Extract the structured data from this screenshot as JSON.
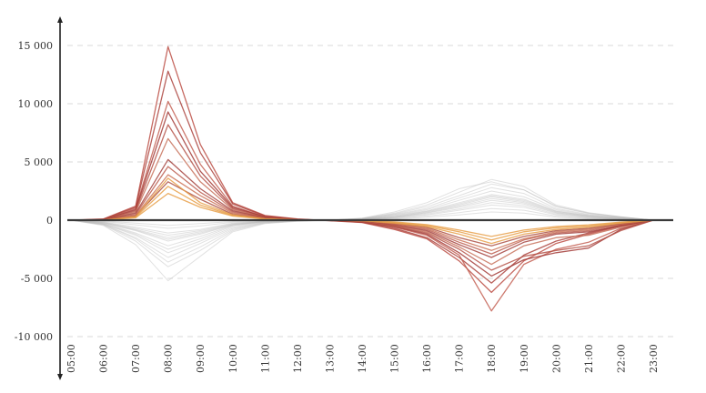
{
  "chart_data": {
    "type": "line",
    "title": "",
    "xlabel": "",
    "ylabel": "",
    "ylim": [
      -10000,
      15000
    ],
    "grid": true,
    "x": [
      "05:00",
      "06:00",
      "07:00",
      "08:00",
      "09:00",
      "10:00",
      "11:00",
      "12:00",
      "13:00",
      "14:00",
      "15:00",
      "16:00",
      "17:00",
      "18:00",
      "19:00",
      "20:00",
      "21:00",
      "22:00",
      "23:00"
    ],
    "y_ticks": [
      -10000,
      -5000,
      0,
      5000,
      10000,
      15000
    ],
    "y_tick_labels": [
      "-10 000",
      "-5 000",
      "0",
      "5 000",
      "10 000",
      "15 000"
    ],
    "x_tick_labels": [
      "05:00",
      "06:00",
      "07:00",
      "08:00",
      "09:00",
      "10:00",
      "11:00",
      "12:00",
      "13:00",
      "14:00",
      "15:00",
      "16:00",
      "17:00",
      "18:00",
      "19:00",
      "20:00",
      "21:00",
      "22:00",
      "23:00"
    ],
    "colors": {
      "gray": "#bdbdbd",
      "highlight_dark": "#a0332f",
      "highlight_mid": "#c0584a",
      "highlight_light": "#e8a04a",
      "axis": "#222222"
    },
    "series_groups": [
      {
        "role": "background",
        "color": "#bdbdbd",
        "series": [
          {
            "values": [
              0,
              -300,
              -1200,
              -2500,
              -1600,
              -500,
              -150,
              -50,
              0,
              100,
              400,
              800,
              1500,
              2200,
              1800,
              800,
              400,
              200,
              0
            ]
          },
          {
            "values": [
              0,
              -250,
              -900,
              -1800,
              -1200,
              -400,
              -120,
              -40,
              0,
              80,
              300,
              700,
              1300,
              2000,
              1600,
              700,
              350,
              150,
              0
            ]
          },
          {
            "values": [
              0,
              -350,
              -1500,
              -3200,
              -2000,
              -700,
              -200,
              -60,
              0,
              120,
              500,
              1000,
              1900,
              2800,
              2300,
              1000,
              500,
              250,
              0
            ]
          },
          {
            "values": [
              0,
              -200,
              -800,
              -1500,
              -1000,
              -350,
              -100,
              -30,
              0,
              60,
              250,
              600,
              1100,
              1700,
              1400,
              600,
              300,
              120,
              0
            ]
          },
          {
            "values": [
              0,
              -400,
              -1800,
              -4000,
              -2600,
              -900,
              -250,
              -80,
              0,
              150,
              600,
              1300,
              2400,
              3500,
              2900,
              1300,
              650,
              300,
              0
            ]
          },
          {
            "values": [
              0,
              -150,
              -600,
              -1100,
              -800,
              -250,
              -80,
              -20,
              0,
              50,
              200,
              450,
              850,
              1300,
              1100,
              450,
              220,
              100,
              0
            ]
          },
          {
            "values": [
              0,
              -450,
              -2100,
              -5200,
              -3100,
              -1000,
              -300,
              -90,
              0,
              170,
              700,
              1500,
              2700,
              3300,
              2600,
              1200,
              600,
              280,
              0
            ]
          },
          {
            "values": [
              0,
              -100,
              -400,
              -700,
              -500,
              -180,
              -60,
              -15,
              0,
              40,
              150,
              350,
              650,
              1000,
              850,
              350,
              170,
              80,
              0
            ]
          },
          {
            "values": [
              0,
              -280,
              -1100,
              -2200,
              -1400,
              -450,
              -140,
              -45,
              0,
              90,
              350,
              750,
              1400,
              2100,
              1700,
              750,
              380,
              180,
              0
            ]
          },
          {
            "values": [
              0,
              -320,
              -1300,
              -2800,
              -1800,
              -600,
              -180,
              -55,
              0,
              110,
              450,
              900,
              1700,
              2500,
              2000,
              900,
              450,
              220,
              0
            ]
          },
          {
            "values": [
              0,
              -180,
              -700,
              -1300,
              -900,
              -300,
              -90,
              -25,
              0,
              55,
              220,
              520,
              950,
              1500,
              1250,
              520,
              260,
              110,
              0
            ]
          },
          {
            "values": [
              0,
              -380,
              -1600,
              -3600,
              -2300,
              -800,
              -230,
              -70,
              0,
              140,
              550,
              1150,
              2100,
              3100,
              2600,
              1150,
              580,
              270,
              0
            ]
          },
          {
            "values": [
              0,
              -60,
              -250,
              -450,
              -300,
              -120,
              -40,
              -10,
              0,
              30,
              100,
              250,
              450,
              700,
              600,
              250,
              120,
              60,
              0
            ]
          },
          {
            "values": [
              0,
              -220,
              -850,
              -1650,
              -1100,
              -380,
              -110,
              -35,
              0,
              70,
              280,
              650,
              1200,
              1850,
              1500,
              650,
              320,
              140,
              0
            ]
          }
        ]
      },
      {
        "role": "highlight",
        "color": "#a0332f",
        "series": [
          {
            "values": [
              0,
              100,
              1200,
              14900,
              6500,
              1500,
              400,
              100,
              -50,
              -200,
              -800,
              -1600,
              -3500,
              -6200,
              -3500,
              -2000,
              -1200,
              -500,
              0
            ]
          },
          {
            "values": [
              0,
              80,
              1100,
              12800,
              5800,
              1400,
              350,
              80,
              -40,
              -180,
              -700,
              -1500,
              -3200,
              -5400,
              -3000,
              -1800,
              -1100,
              -450,
              0
            ]
          },
          {
            "values": [
              0,
              60,
              1000,
              10200,
              4800,
              1200,
              300,
              70,
              -30,
              -150,
              -600,
              -1300,
              -3000,
              -7800,
              -3800,
              -2500,
              -1900,
              -700,
              0
            ]
          },
          {
            "values": [
              0,
              50,
              900,
              9300,
              4200,
              1100,
              280,
              60,
              -30,
              -140,
              -550,
              -1200,
              -2800,
              -4800,
              -3400,
              -2800,
              -2400,
              -800,
              0
            ]
          },
          {
            "values": [
              0,
              40,
              800,
              8200,
              3800,
              1000,
              250,
              50,
              -25,
              -120,
              -500,
              -1100,
              -2500,
              -4300,
              -3100,
              -2600,
              -2200,
              -900,
              0
            ]
          },
          {
            "values": [
              0,
              30,
              700,
              7000,
              3300,
              900,
              220,
              40,
              -20,
              -100,
              -450,
              -1000,
              -2300,
              -3800,
              -2200,
              -1500,
              -1300,
              -600,
              0
            ]
          },
          {
            "values": [
              0,
              20,
              600,
              5200,
              2700,
              800,
              200,
              30,
              -15,
              -80,
              -400,
              -900,
              -2100,
              -3200,
              -1900,
              -1200,
              -1000,
              -500,
              0
            ]
          },
          {
            "values": [
              0,
              20,
              500,
              4600,
              2400,
              700,
              180,
              30,
              -15,
              -70,
              -350,
              -800,
              -1900,
              -2900,
              -1700,
              -1100,
              -900,
              -400,
              0
            ]
          },
          {
            "values": [
              0,
              10,
              400,
              3900,
              2100,
              600,
              160,
              20,
              -10,
              -60,
              -300,
              -700,
              -1700,
              -2600,
              -1600,
              -1000,
              -800,
              -350,
              0
            ]
          },
          {
            "values": [
              0,
              10,
              350,
              3300,
              1800,
              500,
              140,
              20,
              -10,
              -50,
              -250,
              -600,
              -1500,
              -2200,
              -1400,
              -900,
              -700,
              -300,
              0
            ]
          }
        ]
      },
      {
        "role": "highlight-light",
        "color": "#e8a04a",
        "series": [
          {
            "values": [
              0,
              10,
              300,
              3600,
              1500,
              450,
              120,
              20,
              -10,
              -50,
              -250,
              -550,
              -1200,
              -2000,
              -1200,
              -800,
              -600,
              -250,
              0
            ]
          },
          {
            "values": [
              0,
              10,
              250,
              2900,
              1300,
              400,
              100,
              15,
              -8,
              -40,
              -200,
              -450,
              -1000,
              -1700,
              -1000,
              -650,
              -500,
              -200,
              0
            ]
          },
          {
            "values": [
              0,
              5,
              200,
              2300,
              1100,
              350,
              90,
              10,
              -5,
              -30,
              -150,
              -380,
              -850,
              -1400,
              -850,
              -550,
              -400,
              -170,
              0
            ]
          }
        ]
      }
    ]
  }
}
